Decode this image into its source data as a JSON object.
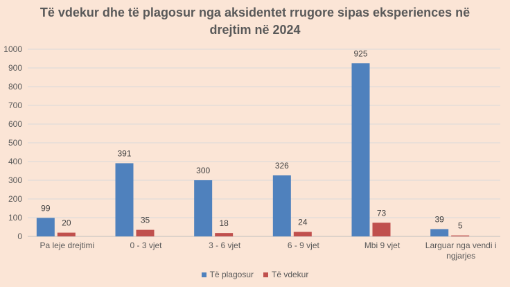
{
  "chart_data": {
    "type": "bar",
    "title_lines": [
      "Të vdekur dhe të plagosur nga aksidentet rrugore sipas eksperiences në",
      "drejtim në 2024"
    ],
    "categories": [
      [
        "Pa leje drejtimi"
      ],
      [
        "0 - 3 vjet"
      ],
      [
        "3 - 6  vjet"
      ],
      [
        "6 - 9 vjet"
      ],
      [
        "Mbi 9 vjet"
      ],
      [
        "Larguar nga vendi i",
        "ngjarjes"
      ]
    ],
    "series": [
      {
        "name": "Të plagosur",
        "color": "#4f81bd",
        "values": [
          99,
          391,
          300,
          326,
          925,
          39
        ]
      },
      {
        "name": "Të vdekur",
        "color": "#c0504d",
        "values": [
          20,
          35,
          18,
          24,
          73,
          5
        ]
      }
    ],
    "ylim": [
      0,
      1000
    ],
    "yticks": [
      0,
      100,
      200,
      300,
      400,
      500,
      600,
      700,
      800,
      900,
      1000
    ],
    "grid": true,
    "legend_position": "bottom"
  }
}
